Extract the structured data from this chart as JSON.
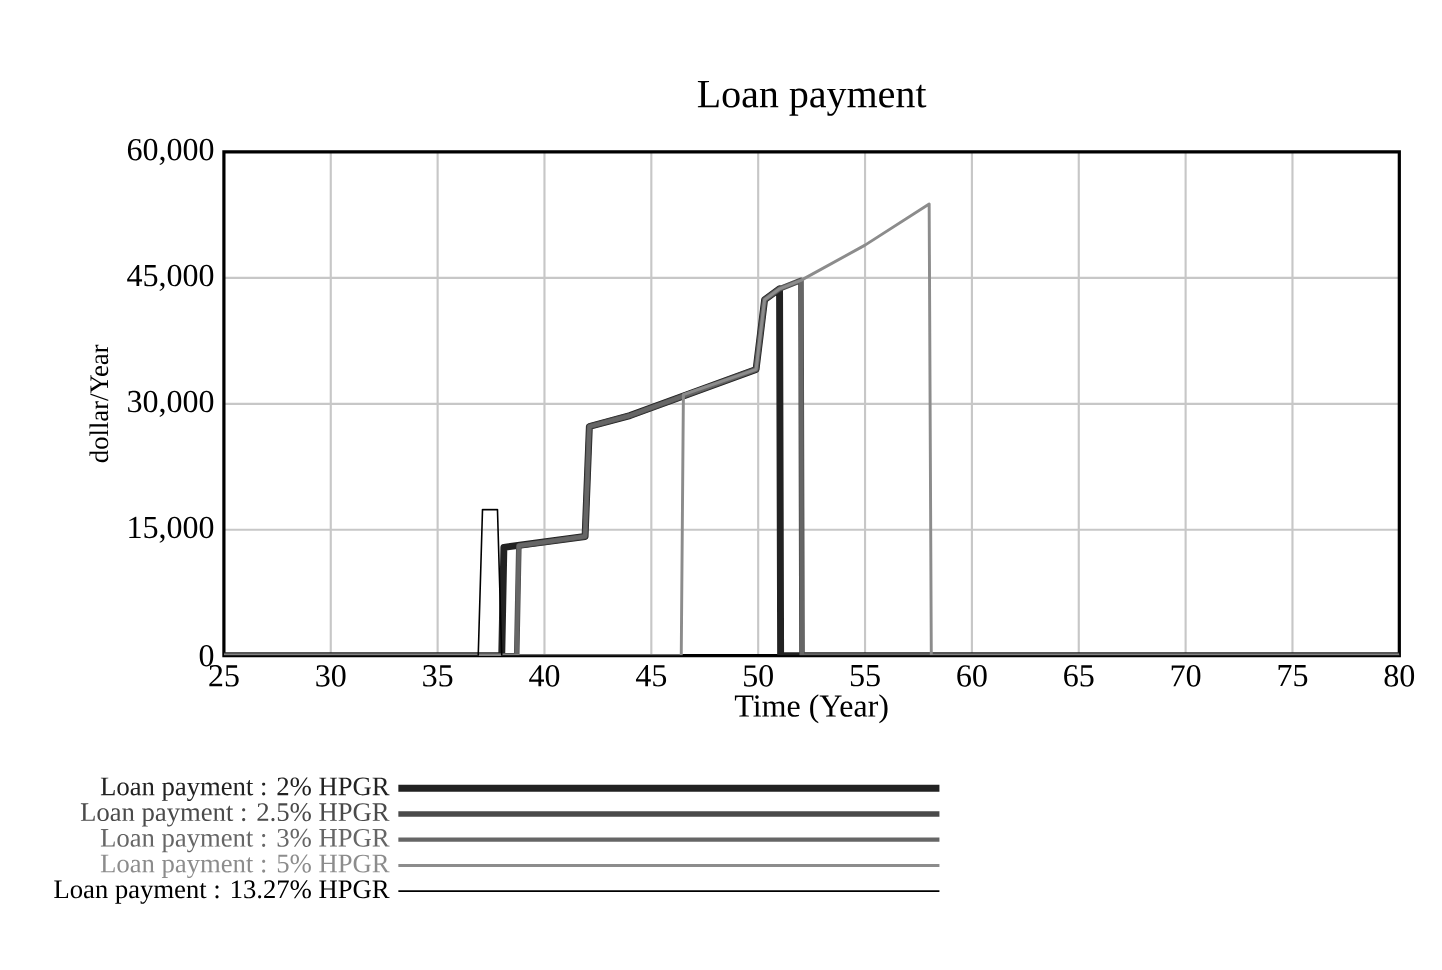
{
  "chart_data": {
    "type": "line",
    "title": "Loan payment",
    "xlabel": "Time (Year)",
    "ylabel": "dollar/Year",
    "xlim": [
      25,
      80
    ],
    "xticks": [
      25,
      30,
      35,
      40,
      45,
      50,
      55,
      60,
      65,
      70,
      75,
      80
    ],
    "ylim": [
      0,
      60000
    ],
    "yticks": [
      0,
      {
        "value": 15000,
        "label": "15,000"
      },
      {
        "value": 30000,
        "label": "30,000"
      },
      {
        "value": 45000,
        "label": "45,000"
      },
      {
        "value": 60000,
        "label": "60,000"
      }
    ],
    "grid": true,
    "legend": "bottom",
    "marker": "none",
    "line_style": "solid",
    "series": [
      {
        "name": "Loan payment : 2% HPGR",
        "color": "#222222",
        "x": [
          25,
          38.0,
          38.1,
          41.9,
          42.1,
          44,
          49.9,
          50.3,
          51.0,
          51.05,
          80
        ],
        "values": [
          0,
          0,
          12900,
          14200,
          27300,
          28600,
          34100,
          42400,
          43700,
          0,
          0
        ]
      },
      {
        "name": "Loan payment : 2.5% HPGR",
        "color": "#4a4a4a",
        "x": [
          25,
          38.7,
          38.8,
          41.9,
          42.1,
          44,
          49.9,
          50.3,
          51.0,
          52.0,
          52.05,
          80
        ],
        "values": [
          0,
          0,
          13100,
          14200,
          27300,
          28600,
          34100,
          42400,
          43700,
          44700,
          0,
          0
        ]
      },
      {
        "name": "Loan payment : 3% HPGR",
        "color": "#666666",
        "x": [
          25,
          38.7,
          38.8,
          41.9,
          42.1,
          44,
          49.9,
          50.3,
          51.0,
          52.0,
          52.05,
          80
        ],
        "values": [
          0,
          0,
          13100,
          14200,
          27300,
          28600,
          34100,
          42400,
          43700,
          44700,
          0,
          0
        ]
      },
      {
        "name": "Loan payment : 5% HPGR",
        "color": "#8c8c8c",
        "x": [
          25,
          46.4,
          46.5,
          49.9,
          50.3,
          51.0,
          52.0,
          55,
          58.0,
          58.1,
          80
        ],
        "values": [
          0,
          0,
          31100,
          34100,
          42400,
          43700,
          44700,
          48900,
          53800,
          0,
          0
        ]
      },
      {
        "name": "Loan payment : 13.27% HPGR",
        "color": "#000000",
        "x": [
          25,
          36.9,
          37.1,
          37.8,
          38.0,
          80
        ],
        "values": [
          0,
          0,
          17400,
          17400,
          0,
          0
        ]
      }
    ]
  }
}
